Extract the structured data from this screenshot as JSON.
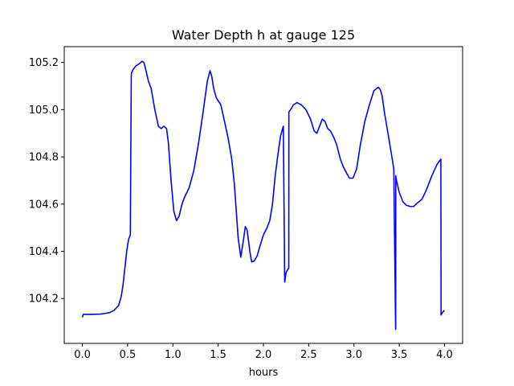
{
  "chart_data": {
    "type": "line",
    "title": "Water Depth h at gauge 125",
    "xlabel": "hours",
    "ylabel": "",
    "xlim": [
      -0.2,
      4.2
    ],
    "ylim": [
      104.01,
      105.267
    ],
    "xticks": [
      0.0,
      0.5,
      1.0,
      1.5,
      2.0,
      2.5,
      3.0,
      3.5,
      4.0
    ],
    "xtick_labels": [
      "0.0",
      "0.5",
      "1.0",
      "1.5",
      "2.0",
      "2.5",
      "3.0",
      "3.5",
      "4.0"
    ],
    "yticks": [
      104.2,
      104.4,
      104.6,
      104.8,
      105.0,
      105.2
    ],
    "ytick_labels": [
      "104.2",
      "104.4",
      "104.6",
      "104.8",
      "105.0",
      "105.2"
    ],
    "grid": false,
    "series": [
      {
        "color": "#0000ff",
        "x": [
          0.0,
          0.01,
          0.05,
          0.1,
          0.2,
          0.3,
          0.35,
          0.4,
          0.43,
          0.45,
          0.47,
          0.49,
          0.51,
          0.53,
          0.54,
          0.543,
          0.56,
          0.59,
          0.63,
          0.66,
          0.68,
          0.7,
          0.73,
          0.76,
          0.8,
          0.84,
          0.87,
          0.9,
          0.93,
          0.95,
          0.98,
          1.01,
          1.04,
          1.07,
          1.1,
          1.13,
          1.18,
          1.23,
          1.28,
          1.33,
          1.38,
          1.41,
          1.43,
          1.45,
          1.48,
          1.53,
          1.57,
          1.61,
          1.65,
          1.68,
          1.72,
          1.75,
          1.78,
          1.8,
          1.82,
          1.85,
          1.87,
          1.9,
          1.93,
          1.96,
          2.0,
          2.04,
          2.07,
          2.1,
          2.13,
          2.16,
          2.19,
          2.22,
          2.235,
          2.236,
          2.25,
          2.28,
          2.281,
          2.3,
          2.33,
          2.37,
          2.42,
          2.47,
          2.52,
          2.56,
          2.59,
          2.62,
          2.65,
          2.68,
          2.71,
          2.74,
          2.78,
          2.81,
          2.85,
          2.88,
          2.92,
          2.95,
          2.99,
          3.03,
          3.07,
          3.12,
          3.17,
          3.22,
          3.25,
          3.27,
          3.29,
          3.31,
          3.34,
          3.38,
          3.41,
          3.44,
          3.46,
          3.461,
          3.462,
          3.47,
          3.5,
          3.54,
          3.58,
          3.62,
          3.66,
          3.7,
          3.75,
          3.8,
          3.86,
          3.92,
          3.96,
          3.962,
          3.975,
          4.0
        ],
        "y": [
          104.12,
          104.133,
          104.133,
          104.133,
          104.134,
          104.14,
          104.15,
          104.17,
          104.21,
          104.26,
          104.33,
          104.4,
          104.45,
          104.47,
          105.14,
          105.155,
          105.17,
          105.185,
          105.195,
          105.205,
          105.2,
          105.17,
          105.12,
          105.09,
          105.0,
          104.93,
          104.92,
          104.93,
          104.92,
          104.86,
          104.7,
          104.57,
          104.53,
          104.55,
          104.6,
          104.63,
          104.67,
          104.74,
          104.85,
          104.98,
          105.12,
          105.165,
          105.14,
          105.09,
          105.05,
          105.02,
          104.95,
          104.88,
          104.79,
          104.68,
          104.46,
          104.375,
          104.45,
          104.505,
          104.49,
          104.4,
          104.355,
          104.36,
          104.38,
          104.42,
          104.47,
          104.5,
          104.53,
          104.6,
          104.72,
          104.81,
          104.89,
          104.93,
          104.27,
          104.27,
          104.31,
          104.33,
          104.99,
          105.0,
          105.02,
          105.03,
          105.02,
          105.0,
          104.96,
          104.91,
          104.9,
          104.93,
          104.96,
          104.95,
          104.92,
          104.91,
          104.88,
          104.85,
          104.79,
          104.76,
          104.73,
          104.71,
          104.71,
          104.75,
          104.85,
          104.95,
          105.02,
          105.08,
          105.09,
          105.095,
          105.085,
          105.06,
          104.98,
          104.89,
          104.82,
          104.75,
          104.07,
          104.07,
          104.72,
          104.7,
          104.65,
          104.61,
          104.595,
          104.59,
          104.59,
          104.605,
          104.62,
          104.66,
          104.72,
          104.77,
          104.79,
          104.13,
          104.14,
          104.15
        ]
      }
    ]
  }
}
